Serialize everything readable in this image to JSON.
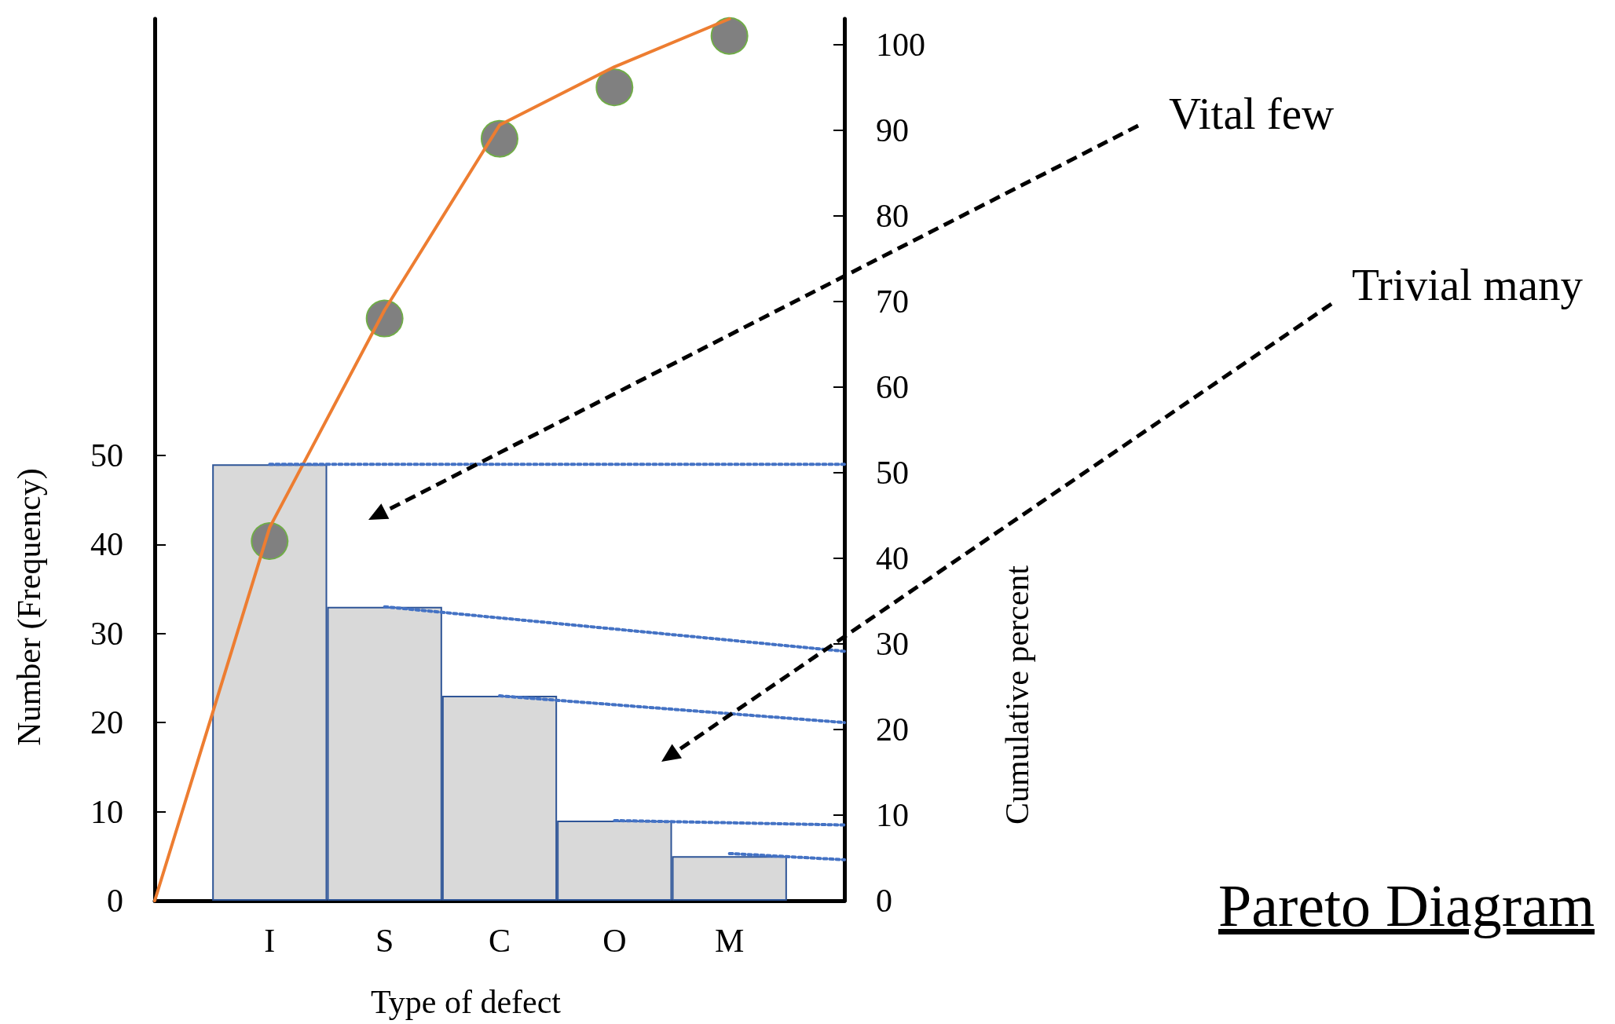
{
  "chart_data": {
    "type": "bar",
    "title": "Pareto Diagram",
    "xlabel": "Type of defect",
    "ylabel": "Number (Frequency)",
    "y2label": "Cumulative percent",
    "annotations": [
      "Vital few",
      "Trivial many"
    ],
    "categories": [
      null,
      "I",
      "S",
      "C",
      "O",
      "M",
      null
    ],
    "ylim": [
      0,
      99
    ],
    "yticks": [
      0,
      10,
      20,
      30,
      40,
      50
    ],
    "y2lim": [
      0,
      103
    ],
    "y2ticks": [
      0,
      10,
      20,
      30,
      40,
      50,
      60,
      70,
      80,
      90,
      100
    ],
    "grid": false,
    "series": [
      {
        "color": "#d9d9d9",
        "values": [
          null,
          49,
          33,
          23,
          9,
          5,
          null
        ]
      },
      {
        "type": "line",
        "color": "#ed7d31",
        "axis": "y2",
        "marker": "none",
        "line_style": "solid",
        "values": [
          0,
          43.6,
          69,
          90.6,
          97.4,
          103,
          null
        ]
      },
      {
        "type": "scatter",
        "color": "#808080",
        "axis": "y2",
        "marker": "circle",
        "values": [
          null,
          42,
          68,
          89,
          95,
          101,
          null
        ]
      },
      {
        "type": "line",
        "color": "#4472c4",
        "marker": "none",
        "line_style": "dotted",
        "values": [
          null,
          49,
          null,
          null,
          null,
          null,
          49
        ]
      },
      {
        "type": "line",
        "color": "#4472c4",
        "marker": "none",
        "line_style": "dotted",
        "values": [
          null,
          null,
          33,
          null,
          null,
          null,
          28
        ]
      },
      {
        "type": "line",
        "color": "#4472c4",
        "marker": "none",
        "line_style": "dotted",
        "values": [
          null,
          null,
          null,
          23,
          null,
          null,
          20
        ]
      },
      {
        "type": "line",
        "color": "#4472c4",
        "marker": "none",
        "line_style": "dotted",
        "values": [
          null,
          null,
          null,
          null,
          9,
          null,
          8.5
        ]
      },
      {
        "type": "line",
        "color": "#4472c4",
        "marker": "none",
        "line_style": "dotted",
        "values": [
          null,
          null,
          null,
          null,
          null,
          5.3,
          4.6
        ]
      }
    ]
  }
}
